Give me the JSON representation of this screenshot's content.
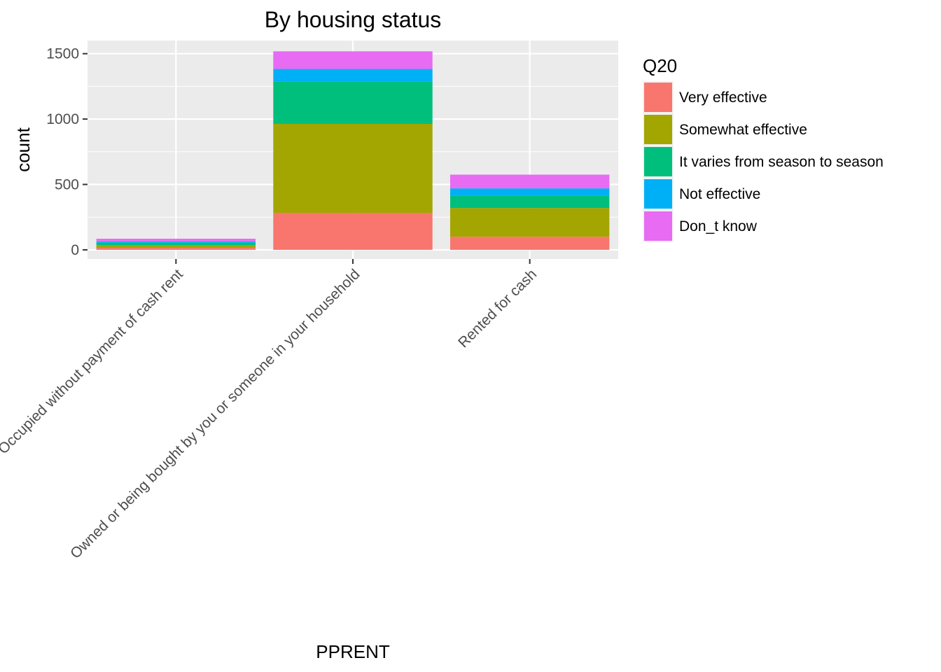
{
  "chart_data": {
    "type": "bar",
    "stacked": true,
    "title": "By housing status",
    "xlabel": "PPRENT",
    "ylabel": "count",
    "categories": [
      "Occupied without payment of cash rent",
      "Owned or being bought by you or someone in your household",
      "Rented for cash"
    ],
    "series": [
      {
        "name": "Very effective",
        "color": "#F8766D",
        "values": [
          15,
          283,
          100
        ]
      },
      {
        "name": "Somewhat effective",
        "color": "#A3A500",
        "values": [
          20,
          680,
          220
        ]
      },
      {
        "name": "It varies from season to season",
        "color": "#00BF7D",
        "values": [
          20,
          325,
          95
        ]
      },
      {
        "name": "Not effective",
        "color": "#00B0F6",
        "values": [
          10,
          95,
          55
        ]
      },
      {
        "name": "Don_t know",
        "color": "#E76BF3",
        "values": [
          20,
          135,
          105
        ]
      }
    ],
    "ylim": [
      -70,
      1600
    ],
    "yticks": [
      0,
      500,
      1000,
      1500
    ],
    "ytick_labels": [
      "0",
      "500",
      "1000",
      "1500"
    ],
    "legend": {
      "title": "Q20",
      "position": "right"
    },
    "grid": true,
    "panel_background": "#EBEBEB"
  }
}
